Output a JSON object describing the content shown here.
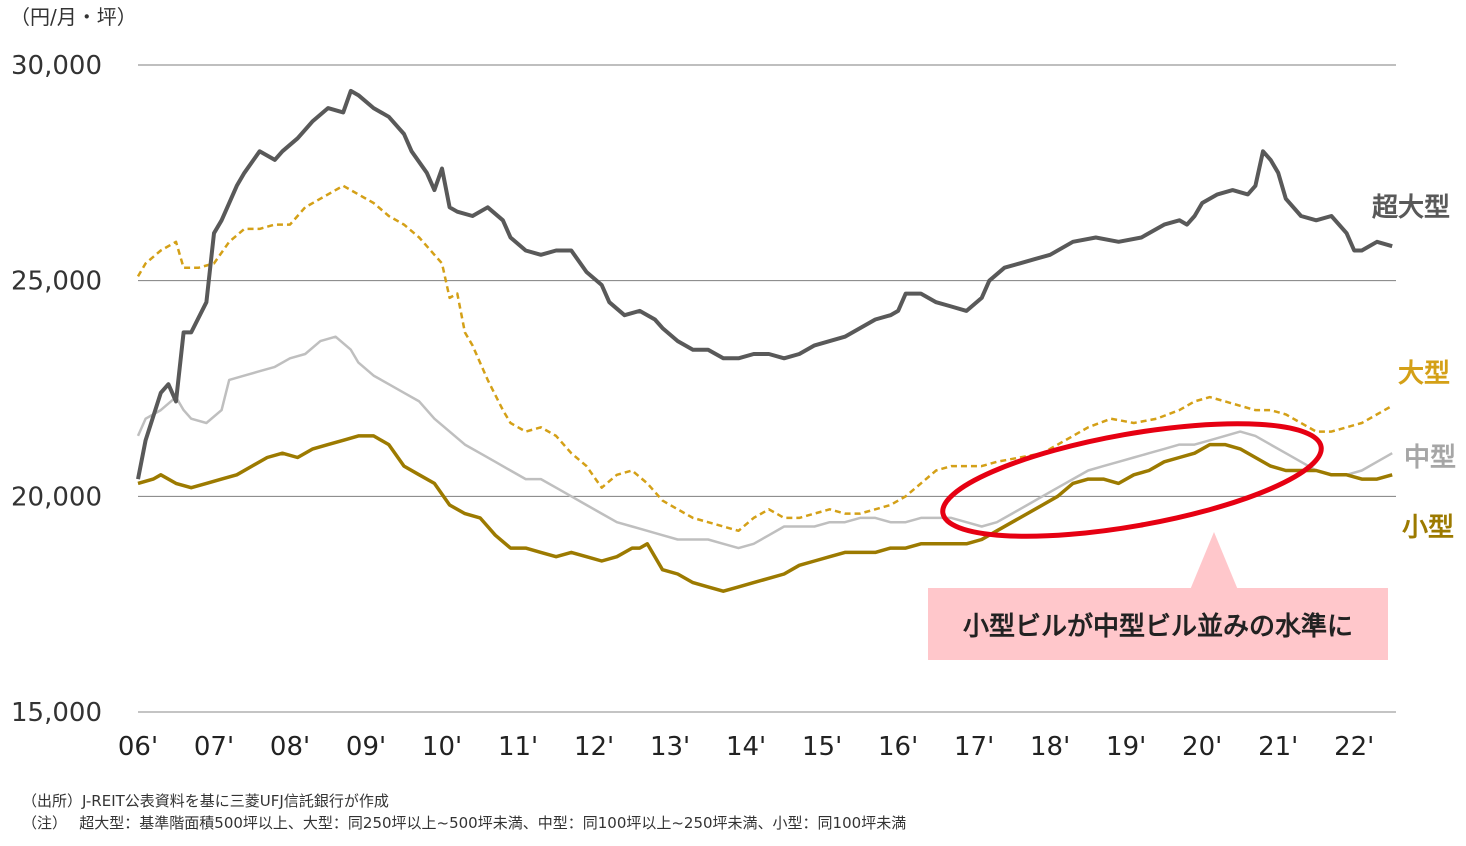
{
  "unit_label": "（円/月・坪）",
  "callout": {
    "text": "小型ビルが中型ビル並みの水準に",
    "bg": "#FFC7CB",
    "ellipse_color": "#E60012"
  },
  "notes": {
    "source": "（出所）J-REIT公表資料を基に三菱UFJ信託銀行が作成",
    "note": "（注）　 超大型：基準階面積500坪以上、大型：同250坪以上~500坪未満、中型：同100坪以上~250坪未満、小型：同100坪未満"
  },
  "chart_data": {
    "type": "line",
    "ylim": [
      15000,
      30000
    ],
    "yticks": [
      "15,000",
      "20,000",
      "25,000",
      "30,000"
    ],
    "ytick_values": [
      15000,
      20000,
      25000,
      30000
    ],
    "xlim": [
      2006.0,
      2022.55
    ],
    "xticks": [
      "06'",
      "07'",
      "08'",
      "09'",
      "10'",
      "11'",
      "12'",
      "13'",
      "14'",
      "15'",
      "16'",
      "17'",
      "18'",
      "19'",
      "20'",
      "21'",
      "22'"
    ],
    "xtick_values": [
      2006,
      2007,
      2008,
      2009,
      2010,
      2011,
      2012,
      2013,
      2014,
      2015,
      2016,
      2017,
      2018,
      2019,
      2020,
      2021,
      2022
    ],
    "grid": true,
    "series": [
      {
        "name": "超大型",
        "color": "#595959",
        "dash": false,
        "width": 4,
        "x": [
          2006.0,
          2006.1,
          2006.3,
          2006.4,
          2006.5,
          2006.6,
          2006.7,
          2006.9,
          2007.0,
          2007.1,
          2007.3,
          2007.4,
          2007.6,
          2007.8,
          2007.9,
          2008.1,
          2008.3,
          2008.5,
          2008.7,
          2008.8,
          2008.9,
          2009.1,
          2009.3,
          2009.5,
          2009.6,
          2009.8,
          2009.9,
          2010.0,
          2010.1,
          2010.2,
          2010.4,
          2010.6,
          2010.8,
          2010.9,
          2011.1,
          2011.3,
          2011.5,
          2011.7,
          2011.9,
          2012.1,
          2012.2,
          2012.4,
          2012.6,
          2012.8,
          2012.9,
          2013.1,
          2013.3,
          2013.5,
          2013.7,
          2013.9,
          2014.1,
          2014.3,
          2014.5,
          2014.7,
          2014.9,
          2015.1,
          2015.3,
          2015.5,
          2015.7,
          2015.9,
          2016.0,
          2016.1,
          2016.3,
          2016.5,
          2016.7,
          2016.9,
          2017.1,
          2017.2,
          2017.4,
          2017.6,
          2017.8,
          2018.0,
          2018.3,
          2018.6,
          2018.9,
          2019.2,
          2019.5,
          2019.7,
          2019.8,
          2019.9,
          2020.0,
          2020.2,
          2020.4,
          2020.6,
          2020.7,
          2020.8,
          2020.9,
          2021.0,
          2021.1,
          2021.3,
          2021.5,
          2021.7,
          2021.9,
          2022.0,
          2022.1,
          2022.3,
          2022.5
        ],
        "y": [
          20400,
          21300,
          22400,
          22600,
          22200,
          23800,
          23800,
          24500,
          26100,
          26400,
          27200,
          27500,
          28000,
          27800,
          28000,
          28300,
          28700,
          29000,
          28900,
          29400,
          29300,
          29000,
          28800,
          28400,
          28000,
          27500,
          27100,
          27600,
          26700,
          26600,
          26500,
          26700,
          26400,
          26000,
          25700,
          25600,
          25700,
          25700,
          25200,
          24900,
          24500,
          24200,
          24300,
          24100,
          23900,
          23600,
          23400,
          23400,
          23200,
          23200,
          23300,
          23300,
          23200,
          23300,
          23500,
          23600,
          23700,
          23900,
          24100,
          24200,
          24300,
          24700,
          24700,
          24500,
          24400,
          24300,
          24600,
          25000,
          25300,
          25400,
          25500,
          25600,
          25900,
          26000,
          25900,
          26000,
          26300,
          26400,
          26300,
          26500,
          26800,
          27000,
          27100,
          27000,
          27200,
          28000,
          27800,
          27500,
          26900,
          26500,
          26400,
          26500,
          26100,
          25700,
          25700,
          25900,
          25800
        ]
      },
      {
        "name": "大型",
        "color": "#D4A017",
        "dash": true,
        "width": 2.5,
        "x": [
          2006.0,
          2006.1,
          2006.3,
          2006.5,
          2006.6,
          2006.8,
          2007.0,
          2007.2,
          2007.4,
          2007.6,
          2007.8,
          2008.0,
          2008.2,
          2008.4,
          2008.7,
          2008.9,
          2009.1,
          2009.3,
          2009.5,
          2009.7,
          2009.9,
          2010.0,
          2010.1,
          2010.2,
          2010.3,
          2010.4,
          2010.6,
          2010.8,
          2010.9,
          2011.1,
          2011.3,
          2011.5,
          2011.7,
          2011.9,
          2012.1,
          2012.3,
          2012.5,
          2012.7,
          2012.9,
          2013.1,
          2013.3,
          2013.5,
          2013.7,
          2013.9,
          2014.1,
          2014.3,
          2014.5,
          2014.7,
          2014.9,
          2015.1,
          2015.3,
          2015.5,
          2015.7,
          2015.9,
          2016.1,
          2016.3,
          2016.5,
          2016.7,
          2016.9,
          2017.1,
          2017.3,
          2017.6,
          2017.9,
          2018.2,
          2018.5,
          2018.8,
          2019.1,
          2019.4,
          2019.7,
          2019.9,
          2020.1,
          2020.3,
          2020.5,
          2020.7,
          2020.9,
          2021.1,
          2021.3,
          2021.5,
          2021.7,
          2021.9,
          2022.1,
          2022.3,
          2022.5
        ],
        "y": [
          25100,
          25400,
          25700,
          25900,
          25300,
          25300,
          25400,
          25900,
          26200,
          26200,
          26300,
          26300,
          26700,
          26900,
          27200,
          27000,
          26800,
          26500,
          26300,
          26000,
          25600,
          25400,
          24600,
          24700,
          23800,
          23500,
          22700,
          22000,
          21700,
          21500,
          21600,
          21400,
          21000,
          20700,
          20200,
          20500,
          20600,
          20300,
          19900,
          19700,
          19500,
          19400,
          19300,
          19200,
          19500,
          19700,
          19500,
          19500,
          19600,
          19700,
          19600,
          19600,
          19700,
          19800,
          20000,
          20300,
          20600,
          20700,
          20700,
          20700,
          20800,
          20900,
          21000,
          21300,
          21600,
          21800,
          21700,
          21800,
          22000,
          22200,
          22300,
          22200,
          22100,
          22000,
          22000,
          21900,
          21700,
          21500,
          21500,
          21600,
          21700,
          21900,
          22100
        ]
      },
      {
        "name": "中型",
        "color": "#BFBFBF",
        "dash": false,
        "width": 2.5,
        "x": [
          2006.0,
          2006.1,
          2006.3,
          2006.5,
          2006.6,
          2006.7,
          2006.9,
          2007.1,
          2007.2,
          2007.4,
          2007.6,
          2007.8,
          2008.0,
          2008.2,
          2008.4,
          2008.6,
          2008.8,
          2008.9,
          2009.1,
          2009.3,
          2009.5,
          2009.7,
          2009.9,
          2010.1,
          2010.3,
          2010.5,
          2010.7,
          2010.9,
          2011.1,
          2011.3,
          2011.5,
          2011.7,
          2011.9,
          2012.1,
          2012.3,
          2012.5,
          2012.7,
          2012.9,
          2013.1,
          2013.3,
          2013.5,
          2013.7,
          2013.9,
          2014.1,
          2014.3,
          2014.5,
          2014.7,
          2014.9,
          2015.1,
          2015.3,
          2015.5,
          2015.7,
          2015.9,
          2016.1,
          2016.3,
          2016.5,
          2016.7,
          2016.9,
          2017.1,
          2017.3,
          2017.5,
          2017.7,
          2017.9,
          2018.1,
          2018.3,
          2018.5,
          2018.7,
          2018.9,
          2019.1,
          2019.3,
          2019.5,
          2019.7,
          2019.9,
          2020.1,
          2020.3,
          2020.5,
          2020.7,
          2020.9,
          2021.1,
          2021.3,
          2021.5,
          2021.7,
          2021.9,
          2022.1,
          2022.3,
          2022.5
        ],
        "y": [
          21400,
          21800,
          22000,
          22300,
          22000,
          21800,
          21700,
          22000,
          22700,
          22800,
          22900,
          23000,
          23200,
          23300,
          23600,
          23700,
          23400,
          23100,
          22800,
          22600,
          22400,
          22200,
          21800,
          21500,
          21200,
          21000,
          20800,
          20600,
          20400,
          20400,
          20200,
          20000,
          19800,
          19600,
          19400,
          19300,
          19200,
          19100,
          19000,
          19000,
          19000,
          18900,
          18800,
          18900,
          19100,
          19300,
          19300,
          19300,
          19400,
          19400,
          19500,
          19500,
          19400,
          19400,
          19500,
          19500,
          19500,
          19400,
          19300,
          19400,
          19600,
          19800,
          20000,
          20200,
          20400,
          20600,
          20700,
          20800,
          20900,
          21000,
          21100,
          21200,
          21200,
          21300,
          21400,
          21500,
          21400,
          21200,
          21000,
          20800,
          20600,
          20500,
          20500,
          20600,
          20800,
          21000
        ]
      },
      {
        "name": "小型",
        "color": "#9C7A00",
        "dash": false,
        "width": 3.5,
        "x": [
          2006.0,
          2006.2,
          2006.3,
          2006.5,
          2006.7,
          2006.9,
          2007.1,
          2007.3,
          2007.5,
          2007.7,
          2007.9,
          2008.1,
          2008.3,
          2008.5,
          2008.7,
          2008.9,
          2009.1,
          2009.3,
          2009.5,
          2009.7,
          2009.9,
          2010.1,
          2010.3,
          2010.5,
          2010.6,
          2010.7,
          2010.9,
          2011.1,
          2011.3,
          2011.5,
          2011.7,
          2011.9,
          2012.1,
          2012.3,
          2012.5,
          2012.6,
          2012.7,
          2012.9,
          2013.1,
          2013.3,
          2013.5,
          2013.7,
          2013.9,
          2014.1,
          2014.3,
          2014.5,
          2014.7,
          2014.9,
          2015.1,
          2015.3,
          2015.5,
          2015.7,
          2015.9,
          2016.1,
          2016.3,
          2016.5,
          2016.7,
          2016.9,
          2017.1,
          2017.3,
          2017.5,
          2017.7,
          2017.9,
          2018.1,
          2018.3,
          2018.5,
          2018.7,
          2018.9,
          2019.1,
          2019.3,
          2019.5,
          2019.7,
          2019.9,
          2020.1,
          2020.3,
          2020.5,
          2020.7,
          2020.9,
          2021.1,
          2021.3,
          2021.5,
          2021.7,
          2021.9,
          2022.1,
          2022.3,
          2022.5
        ],
        "y": [
          20300,
          20400,
          20500,
          20300,
          20200,
          20300,
          20400,
          20500,
          20700,
          20900,
          21000,
          20900,
          21100,
          21200,
          21300,
          21400,
          21400,
          21200,
          20700,
          20500,
          20300,
          19800,
          19600,
          19500,
          19300,
          19100,
          18800,
          18800,
          18700,
          18600,
          18700,
          18600,
          18500,
          18600,
          18800,
          18800,
          18900,
          18300,
          18200,
          18000,
          17900,
          17800,
          17900,
          18000,
          18100,
          18200,
          18400,
          18500,
          18600,
          18700,
          18700,
          18700,
          18800,
          18800,
          18900,
          18900,
          18900,
          18900,
          19000,
          19200,
          19400,
          19600,
          19800,
          20000,
          20300,
          20400,
          20400,
          20300,
          20500,
          20600,
          20800,
          20900,
          21000,
          21200,
          21200,
          21100,
          20900,
          20700,
          20600,
          20600,
          20600,
          20500,
          20500,
          20400,
          20400,
          20500
        ]
      }
    ]
  }
}
